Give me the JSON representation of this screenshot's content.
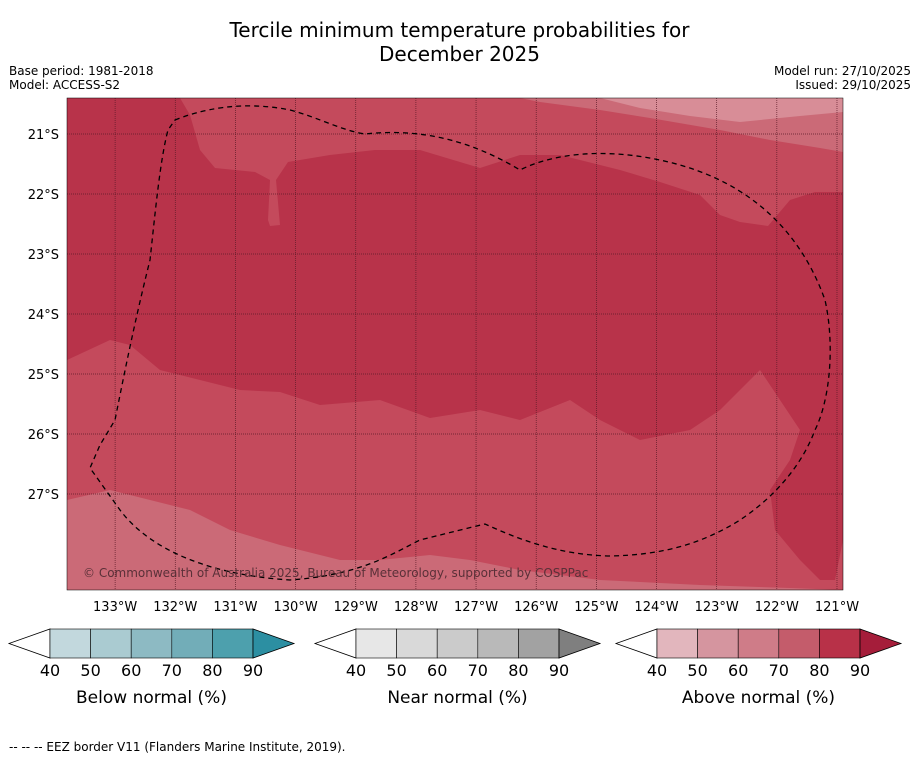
{
  "header": {
    "title_line1": "Tercile minimum temperature probabilities for",
    "title_line2": "December 2025",
    "base_period": "Base period: 1981-2018",
    "model": "Model: ACCESS-S2",
    "model_run": "Model run: 27/10/2025",
    "issued": "Issued: 29/10/2025"
  },
  "chart_data": {
    "type": "heatmap",
    "title": "Tercile minimum temperature probabilities for December 2025",
    "lat_ticks": [
      "21°S",
      "22°S",
      "23°S",
      "24°S",
      "25°S",
      "26°S",
      "27°S"
    ],
    "lat_values": [
      -21,
      -22,
      -23,
      -24,
      -25,
      -26,
      -27
    ],
    "lon_ticks": [
      "133°W",
      "132°W",
      "131°W",
      "130°W",
      "129°W",
      "128°W",
      "127°W",
      "126°W",
      "125°W",
      "124°W",
      "123°W",
      "122°W",
      "121°W"
    ],
    "lon_values": [
      -133,
      -132,
      -131,
      -130,
      -129,
      -128,
      -127,
      -126,
      -125,
      -124,
      -123,
      -122,
      -121
    ],
    "xlim": [
      -133.8,
      -120.9
    ],
    "ylim": [
      -28.6,
      -20.4
    ],
    "grid": true,
    "field_category": "Above normal",
    "dominant_level": "80-90%",
    "levels_present": [
      "60-70%",
      "70-80%",
      "80-90%"
    ],
    "copyright": "© Commonwealth of Australia 2025, Bureau of Meteorology, supported by COSPPac",
    "colorbars": [
      {
        "label": "Below normal (%)",
        "ticks": [
          "40",
          "50",
          "60",
          "70",
          "80",
          "90"
        ],
        "colors": [
          "#c2d8dd",
          "#aacbd1",
          "#8dbac3",
          "#72adb8",
          "#4da0ad",
          "#2c8fa2"
        ]
      },
      {
        "label": "Near normal (%)",
        "ticks": [
          "40",
          "50",
          "60",
          "70",
          "80",
          "90"
        ],
        "colors": [
          "#e7e7e7",
          "#d9d9d9",
          "#cbcbcb",
          "#b9b9b9",
          "#a2a2a2",
          "#7f7f7f"
        ]
      },
      {
        "label": "Above normal (%)",
        "ticks": [
          "40",
          "50",
          "60",
          "70",
          "80",
          "90"
        ],
        "colors": [
          "#e2b6bd",
          "#d5959f",
          "#cf7c88",
          "#c45c6b",
          "#b83148",
          "#a51d3a"
        ]
      }
    ]
  },
  "footnote": "-- -- -- EEZ border V11 (Flanders Marine Institute, 2019)."
}
